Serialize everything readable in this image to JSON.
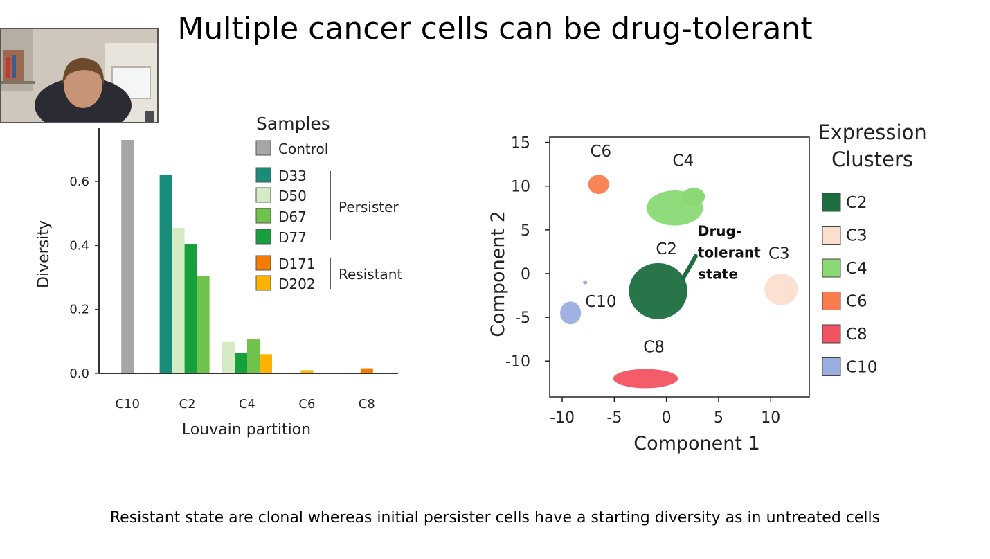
{
  "slide": {
    "title": "Multiple cancer cells can be drug-tolerant",
    "caption": "Resistant state are clonal whereas initial persister cells have a starting diversity as in untreated cells"
  },
  "webcam": {
    "icon": "presenter-video-feed"
  },
  "chart_data": [
    {
      "type": "bar",
      "xlabel": "Louvain partition",
      "ylabel": "Diversity",
      "ylim": [
        0,
        0.73
      ],
      "yticks": [
        0.0,
        0.2,
        0.4,
        0.6
      ],
      "categories": [
        "C10",
        "C2",
        "C4",
        "C6",
        "C8"
      ],
      "legend_title": "Samples",
      "legend_position": "top-right",
      "groups": [
        {
          "label": "Persister",
          "members": [
            "D33",
            "D50",
            "D67",
            "D77"
          ]
        },
        {
          "label": "Resistant",
          "members": [
            "D171",
            "D202"
          ]
        }
      ],
      "series": [
        {
          "name": "Control",
          "color": "#a6a6a6",
          "values": [
            0.73,
            null,
            null,
            null,
            null
          ]
        },
        {
          "name": "D33",
          "color": "#198c7a",
          "values": [
            null,
            0.62,
            null,
            null,
            null
          ]
        },
        {
          "name": "D50",
          "color": "#d5ebc4",
          "values": [
            null,
            0.455,
            0.098,
            null,
            null
          ]
        },
        {
          "name": "D67",
          "color": "#6fc24a",
          "values": [
            null,
            0.305,
            0.106,
            null,
            null
          ]
        },
        {
          "name": "D77",
          "color": "#16a03d",
          "values": [
            null,
            0.405,
            0.065,
            null,
            null
          ]
        },
        {
          "name": "D171",
          "color": "#f57c00",
          "values": [
            null,
            null,
            null,
            null,
            0.016
          ]
        },
        {
          "name": "D202",
          "color": "#ffb300",
          "values": [
            null,
            null,
            0.06,
            0.01,
            null
          ]
        }
      ],
      "bar_order": [
        [
          "Control"
        ],
        [
          "D33",
          "D50",
          "D77",
          "D67"
        ],
        [
          "D50",
          "D77",
          "D67",
          "D202"
        ],
        [
          "D202"
        ],
        [
          "D171"
        ]
      ]
    },
    {
      "type": "scatter",
      "xlabel": "Component 1",
      "ylabel": "Component 2",
      "xlim": [
        -11.2,
        13.7
      ],
      "ylim": [
        -14.1,
        15.6
      ],
      "xticks": [
        -10,
        -5,
        0,
        5,
        10
      ],
      "yticks": [
        -10,
        -5,
        0,
        5,
        10,
        15
      ],
      "legend_title": [
        "Expression",
        "Clusters"
      ],
      "legend_position": "right",
      "series": [
        {
          "name": "C2",
          "color": "#1b6e3e",
          "cx": -0.8,
          "cy": -2.0,
          "rx": 2.8,
          "ry": 3.2
        },
        {
          "name": "C3",
          "color": "#fadfcf",
          "cx": 11.0,
          "cy": -1.8,
          "rx": 1.6,
          "ry": 1.8
        },
        {
          "name": "C4",
          "color": "#8ad974",
          "cx": 0.8,
          "cy": 7.5,
          "rx": 2.7,
          "ry": 2.0
        },
        {
          "name": "C6",
          "color": "#f97d4f",
          "cx": -6.5,
          "cy": 10.2,
          "rx": 1.0,
          "ry": 1.1
        },
        {
          "name": "C8",
          "color": "#f25360",
          "cx": -2.0,
          "cy": -12.0,
          "rx": 3.1,
          "ry": 1.1
        },
        {
          "name": "C10",
          "color": "#9aaee0",
          "cx": -9.2,
          "cy": -4.5,
          "rx": 1.0,
          "ry": 1.3
        }
      ],
      "cluster_labels": [
        {
          "text": "C6",
          "x": -6.3,
          "y": 13.4
        },
        {
          "text": "C4",
          "x": 1.6,
          "y": 12.3
        },
        {
          "text": "C2",
          "x": 0.0,
          "y": 2.2
        },
        {
          "text": "C3",
          "x": 10.8,
          "y": 1.7
        },
        {
          "text": "C10",
          "x": -6.3,
          "y": -3.8
        },
        {
          "text": "C8",
          "x": -1.2,
          "y": -9.0
        }
      ],
      "annotation": {
        "lines": [
          "Drug-",
          "tolerant",
          "state"
        ],
        "x": 3.0,
        "y": 4.3
      }
    }
  ]
}
